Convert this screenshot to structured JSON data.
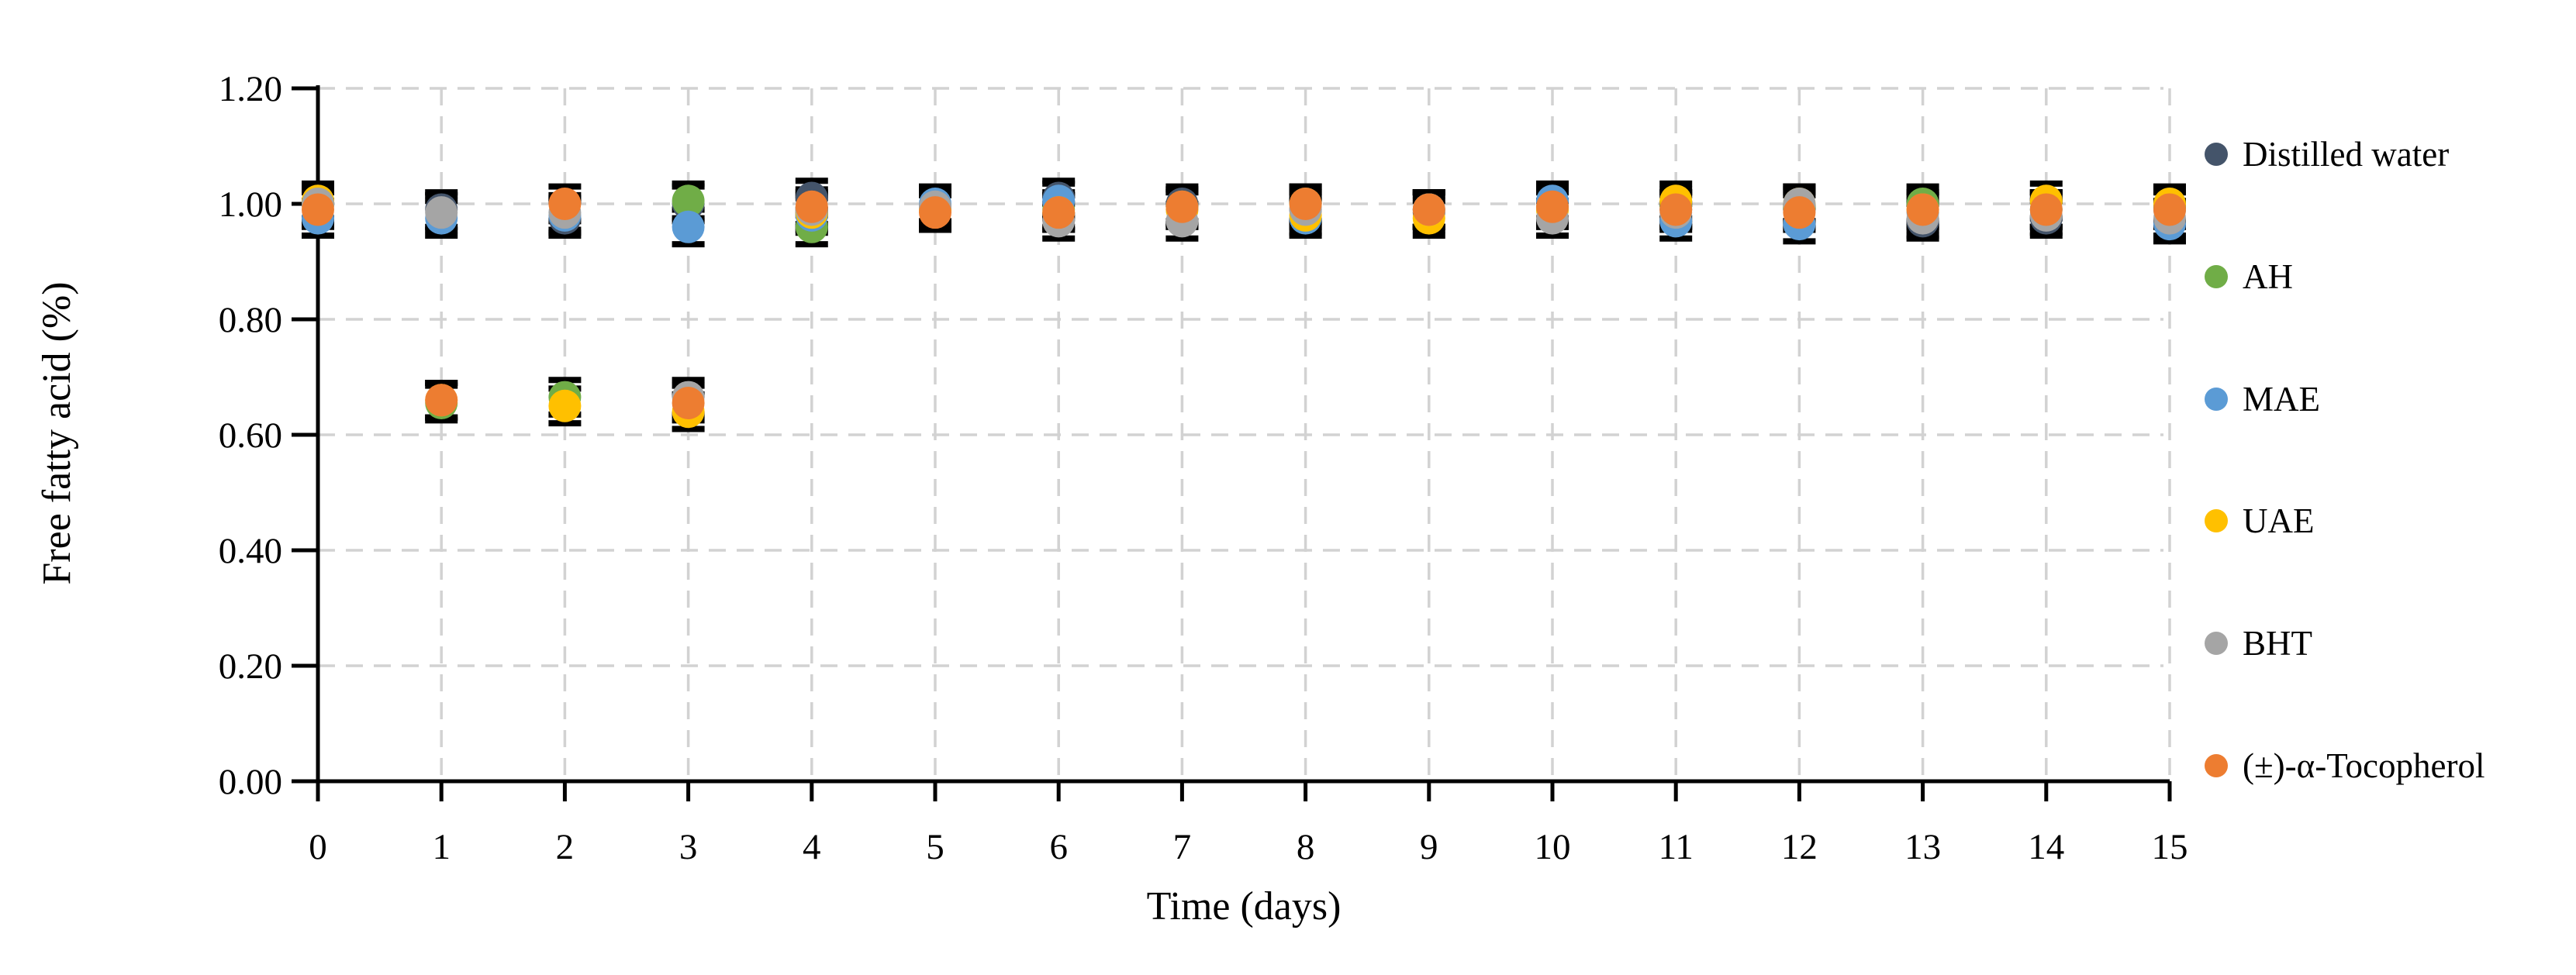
{
  "figure": {
    "x_axis_title": "Time (days)",
    "y_axis_title": "Free fatty acid (%)"
  },
  "chart_data": {
    "type": "scatter",
    "title": "",
    "xlabel": "Time (days)",
    "ylabel": "Free fatty acid (%)",
    "x": [
      0,
      1,
      2,
      3,
      4,
      5,
      6,
      7,
      8,
      9,
      10,
      11,
      12,
      13,
      14,
      15
    ],
    "x_tick_labels": [
      "0",
      "1",
      "2",
      "3",
      "4",
      "5",
      "6",
      "7",
      "8",
      "9",
      "10",
      "11",
      "12",
      "13",
      "14",
      "15"
    ],
    "y_tick_labels": [
      "0.00",
      "0.20",
      "0.40",
      "0.60",
      "0.80",
      "1.00",
      "1.20"
    ],
    "y_ticks": [
      0.0,
      0.2,
      0.4,
      0.6,
      0.8,
      1.0,
      1.2
    ],
    "ylim": [
      0.0,
      1.2
    ],
    "grid": "dashed-both",
    "legend_position": "right",
    "error_bar": 0.03,
    "series": [
      {
        "name": "Distilled water",
        "color": "#44546A",
        "values": [
          1.0,
          0.99,
          0.975,
          1.0,
          1.01,
          0.995,
          1.01,
          1.0,
          0.99,
          0.985,
          0.995,
          0.99,
          0.99,
          0.97,
          0.975,
          0.99
        ]
      },
      {
        "name": "AH",
        "color": "#70AD47",
        "values": [
          1.0,
          0.655,
          0.665,
          1.005,
          0.96,
          0.99,
          0.99,
          0.995,
          1.0,
          0.99,
          0.99,
          0.995,
          0.995,
          1.0,
          0.99,
          0.995
        ]
      },
      {
        "name": "MAE",
        "color": "#5B9BD5",
        "values": [
          0.975,
          0.975,
          0.98,
          0.96,
          0.98,
          1.0,
          1.005,
          0.99,
          0.975,
          0.99,
          1.005,
          0.97,
          0.965,
          0.985,
          0.99,
          0.965
        ]
      },
      {
        "name": "UAE",
        "color": "#FFC000",
        "values": [
          1.005,
          0.66,
          0.65,
          0.64,
          0.985,
          0.99,
          0.985,
          0.99,
          0.98,
          0.975,
          0.99,
          1.005,
          1.0,
          0.99,
          1.005,
          1.0
        ]
      },
      {
        "name": "BHT",
        "color": "#A5A5A5",
        "values": [
          1.0,
          0.985,
          0.985,
          0.665,
          0.99,
          0.995,
          0.97,
          0.97,
          0.99,
          0.99,
          0.975,
          0.985,
          1.0,
          0.975,
          0.98,
          0.975
        ]
      },
      {
        "name": "(±)-α-Tocopherol",
        "color": "#ED7D31",
        "values": [
          0.99,
          0.66,
          1.0,
          0.655,
          0.995,
          0.985,
          0.985,
          0.995,
          1.0,
          0.99,
          0.995,
          0.99,
          0.985,
          0.99,
          0.99,
          0.99
        ]
      }
    ],
    "style": {
      "gridline_color": "#D2D2D2",
      "axis_color": "#000000",
      "error_bar_color": "#000000",
      "background": "#FFFFFF"
    }
  }
}
